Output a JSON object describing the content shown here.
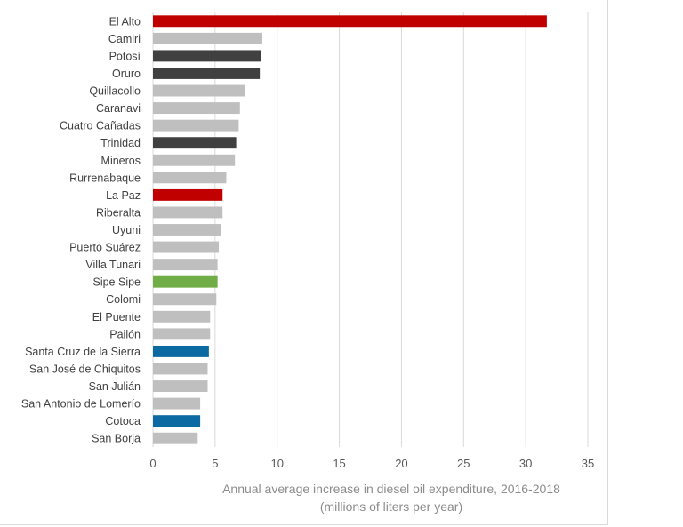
{
  "chart_data": {
    "type": "bar",
    "orientation": "horizontal",
    "categories": [
      "El Alto",
      "Camiri",
      "Potosí",
      "Oruro",
      "Quillacollo",
      "Caranavi",
      "Cuatro Cañadas",
      "Trinidad",
      "Mineros",
      "Rurrenabaque",
      "La Paz",
      "Riberalta",
      "Uyuni",
      "Puerto Suárez",
      "Villa Tunari",
      "Sipe Sipe",
      "Colomi",
      "El Puente",
      "Pailón",
      "Santa Cruz de la Sierra",
      "San José de Chiquitos",
      "San Julián",
      "San Antonio de Lomerío",
      "Cotoca",
      "San Borja"
    ],
    "values": [
      31.7,
      8.8,
      8.7,
      8.6,
      7.4,
      7.0,
      6.9,
      6.7,
      6.6,
      5.9,
      5.6,
      5.6,
      5.5,
      5.3,
      5.2,
      5.2,
      5.1,
      4.6,
      4.6,
      4.5,
      4.4,
      4.4,
      3.8,
      3.8,
      3.6
    ],
    "bar_colors": [
      "#c00000",
      "#bfbfbf",
      "#404040",
      "#404040",
      "#bfbfbf",
      "#bfbfbf",
      "#bfbfbf",
      "#404040",
      "#bfbfbf",
      "#bfbfbf",
      "#c00000",
      "#bfbfbf",
      "#bfbfbf",
      "#bfbfbf",
      "#bfbfbf",
      "#70ad47",
      "#bfbfbf",
      "#bfbfbf",
      "#bfbfbf",
      "#0b6aa1",
      "#bfbfbf",
      "#bfbfbf",
      "#bfbfbf",
      "#0b6aa1",
      "#bfbfbf"
    ],
    "xticks": [
      0,
      5,
      10,
      15,
      20,
      25,
      30,
      35
    ],
    "xlim": [
      0,
      35
    ],
    "xlabel_line1": "Annual average increase in diesel oil expenditure, 2016-2018",
    "xlabel_line2": "(millions of liters per year)",
    "ylabel": "",
    "title": "",
    "grid": "vertical",
    "legend": "none",
    "colors": {
      "text": "#404040",
      "tick_text": "#595959",
      "axis_title": "#8c8c8c",
      "grid": "#d9d9d9",
      "frame": "#d9d9d9"
    }
  }
}
